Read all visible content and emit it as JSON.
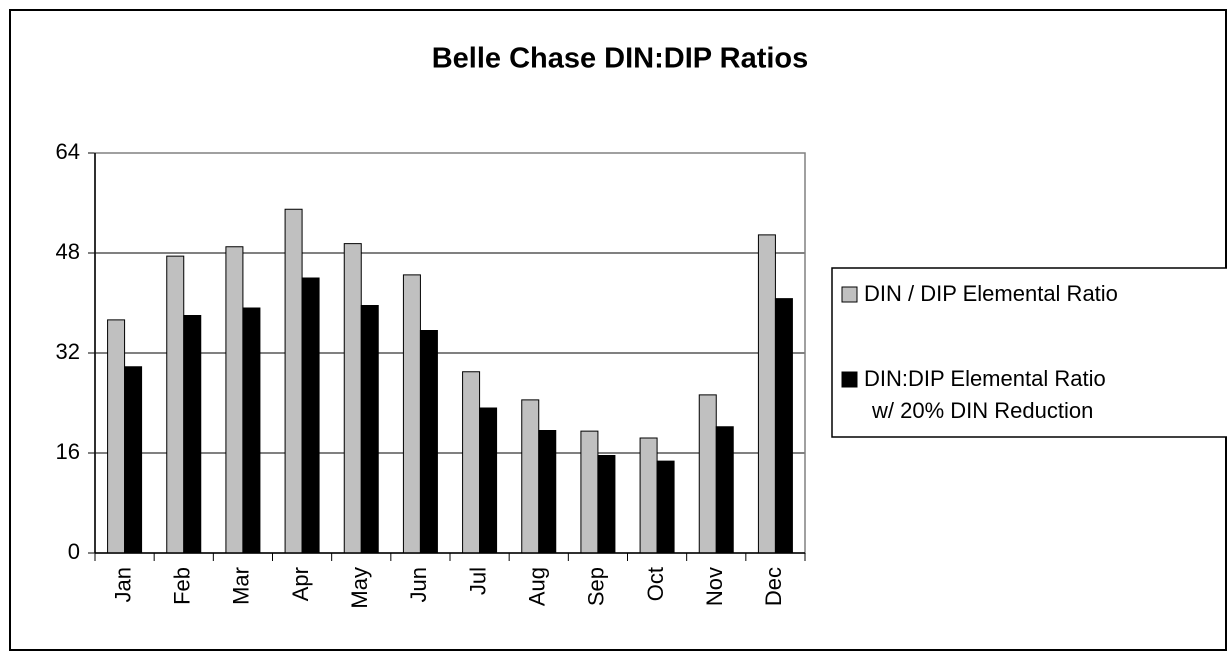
{
  "chart_data": {
    "type": "bar",
    "title": "Belle Chase DIN:DIP Ratios",
    "categories": [
      "Jan",
      "Feb",
      "Mar",
      "Apr",
      "May",
      "Jun",
      "Jul",
      "Aug",
      "Sep",
      "Oct",
      "Nov",
      "Dec"
    ],
    "series": [
      {
        "name": "DIN / DIP Elemental Ratio",
        "color": "#c0c0c0",
        "values": [
          37.3,
          47.5,
          49.0,
          55.0,
          49.5,
          44.5,
          29.0,
          24.5,
          19.5,
          18.4,
          25.3,
          50.9
        ]
      },
      {
        "name": "DIN:DIP Elemental Ratio w/ 20% DIN Reduction",
        "color": "#000000",
        "values": [
          29.8,
          38.0,
          39.2,
          44.0,
          39.6,
          35.6,
          23.2,
          19.6,
          15.6,
          14.7,
          20.2,
          40.7
        ]
      }
    ],
    "ylim": [
      0,
      64
    ],
    "yticks": [
      0,
      16,
      32,
      48,
      64
    ],
    "grid": true,
    "legend": "right"
  }
}
